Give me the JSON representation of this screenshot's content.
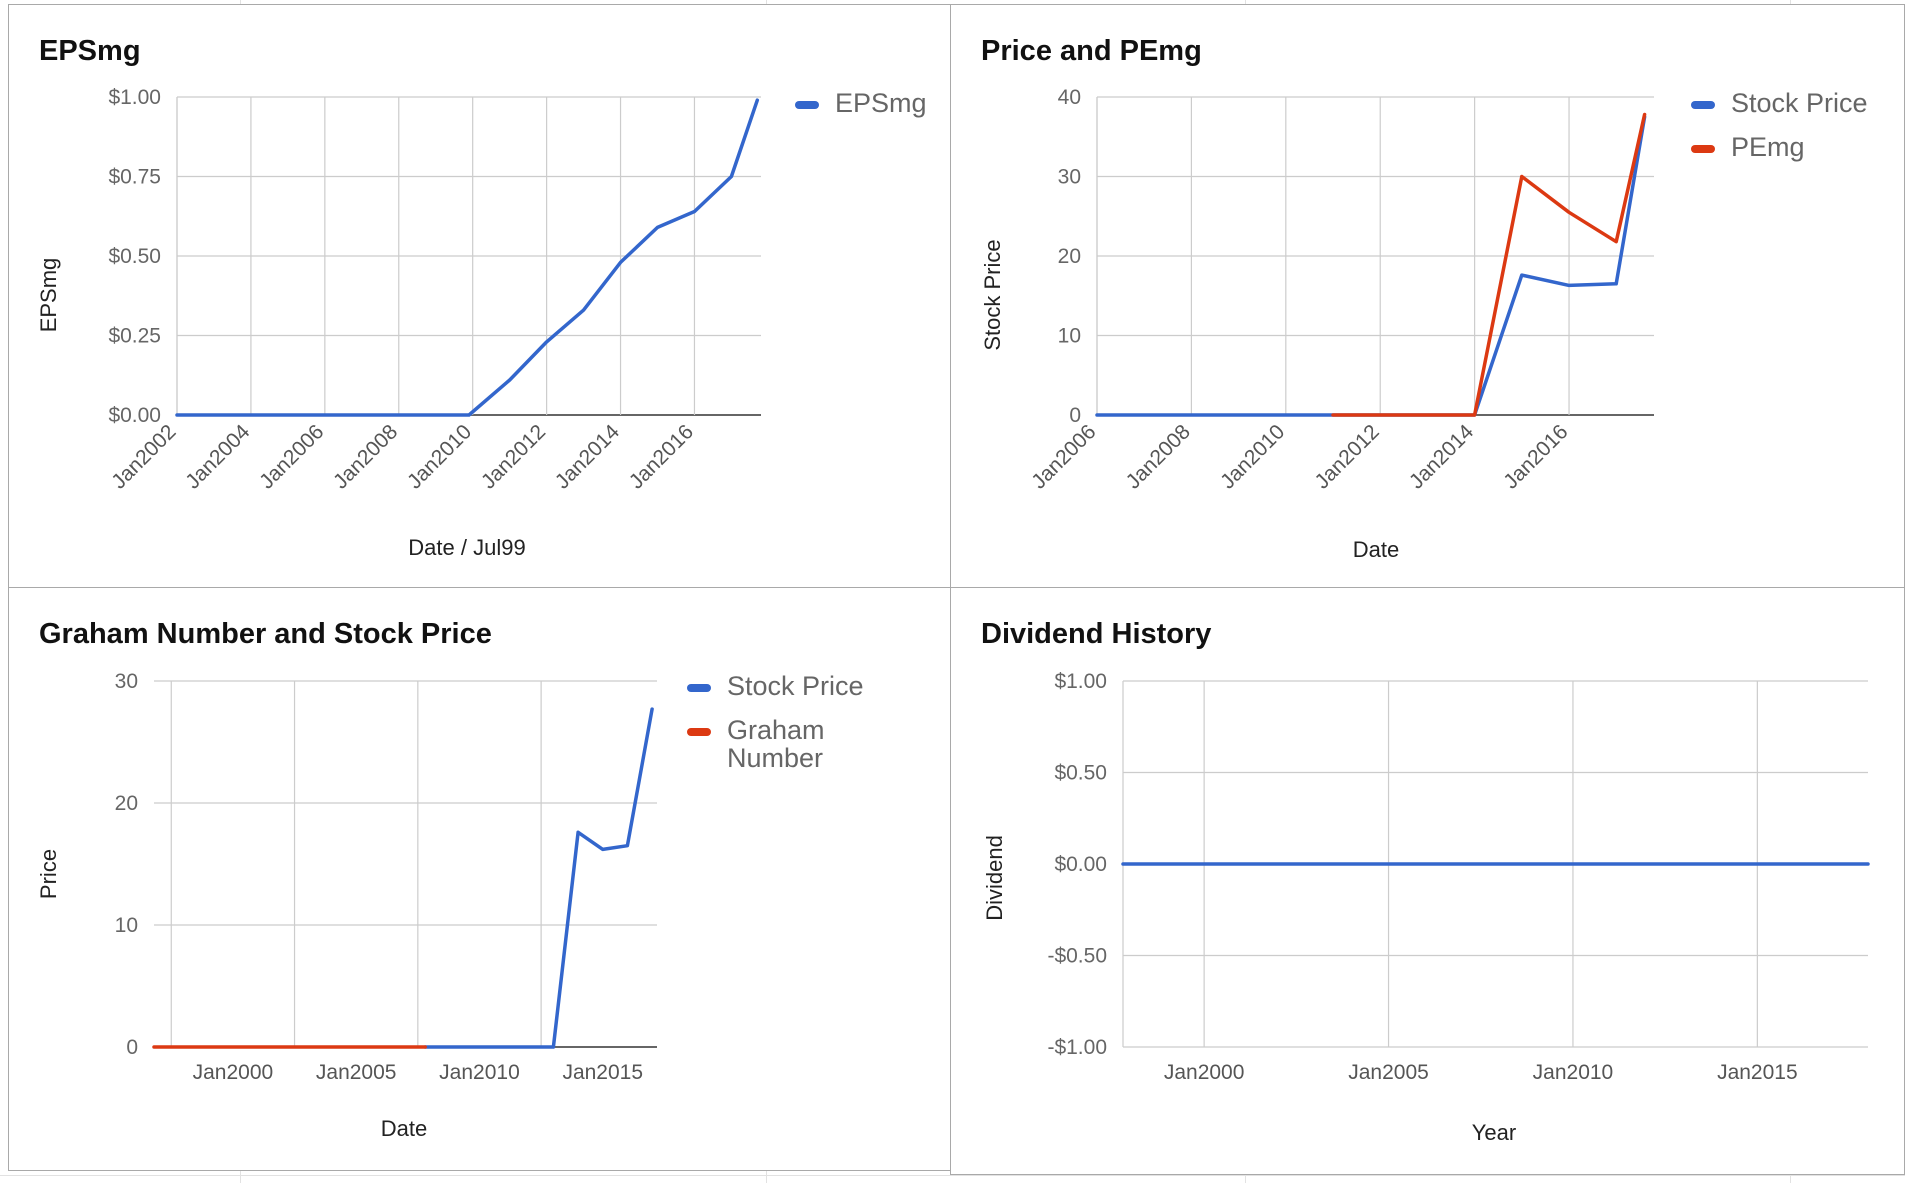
{
  "colors": {
    "blue": "#3366cc",
    "red": "#dc3912",
    "grid": "#cccccc",
    "axis": "#333333"
  },
  "chart_data": [
    {
      "type": "line",
      "title": "EPSmg",
      "xlabel": "Date / Jul99",
      "ylabel": "EPSmg",
      "ylim": [
        0,
        1
      ],
      "yticks": [
        "$0.00",
        "$0.25",
        "$0.50",
        "$0.75",
        "$1.00"
      ],
      "xticks": [
        "Jan2002",
        "Jan2004",
        "Jan2006",
        "Jan2008",
        "Jan2010",
        "Jan2012",
        "Jan2014",
        "Jan2016"
      ],
      "xrange": [
        2002,
        2017.8
      ],
      "legend_position": "right",
      "series": [
        {
          "name": "EPSmg",
          "color": "#3366cc",
          "x": [
            2002,
            2004,
            2006,
            2008,
            2009.9,
            2011,
            2012,
            2013,
            2014,
            2015,
            2016,
            2017,
            2017.7
          ],
          "y": [
            0,
            0,
            0,
            0,
            0,
            0.11,
            0.23,
            0.33,
            0.48,
            0.59,
            0.64,
            0.75,
            0.99
          ]
        }
      ]
    },
    {
      "type": "line",
      "title": "Price and PEmg",
      "xlabel": "Date",
      "ylabel": "Stock Price",
      "ylim": [
        0,
        40
      ],
      "yticks": [
        "0",
        "10",
        "20",
        "30",
        "40"
      ],
      "xticks": [
        "Jan2006",
        "Jan2008",
        "Jan2010",
        "Jan2012",
        "Jan2014",
        "Jan2016"
      ],
      "xrange": [
        2006,
        2017.8
      ],
      "legend_position": "right",
      "series": [
        {
          "name": "Stock Price",
          "color": "#3366cc",
          "x": [
            2006,
            2008,
            2010,
            2012,
            2014,
            2015,
            2016,
            2017,
            2017.6
          ],
          "y": [
            0,
            0,
            0,
            0,
            0,
            17.6,
            16.3,
            16.5,
            37.5
          ]
        },
        {
          "name": "PEmg",
          "color": "#dc3912",
          "x": [
            2011,
            2012,
            2013,
            2014,
            2015,
            2016,
            2017,
            2017.6
          ],
          "y": [
            0,
            0,
            0,
            0,
            30,
            25.5,
            21.8,
            37.8
          ]
        }
      ]
    },
    {
      "type": "line",
      "title": "Graham Number and Stock Price",
      "xlabel": "Date",
      "ylabel": "Price",
      "ylim": [
        0,
        30
      ],
      "yticks": [
        "0",
        "10",
        "20",
        "30"
      ],
      "xticks": [
        "Jan2000",
        "Jan2005",
        "Jan2010",
        "Jan2015"
      ],
      "xtick_values": [
        2000,
        2005,
        2010,
        2015
      ],
      "xrange": [
        1996.8,
        2017.2
      ],
      "legend_position": "right",
      "series": [
        {
          "name": "Stock Price",
          "color": "#3366cc",
          "x": [
            2007.8,
            2010,
            2012,
            2013,
            2014,
            2015,
            2016,
            2017
          ],
          "y": [
            0,
            0,
            0,
            0,
            17.6,
            16.2,
            16.5,
            27.7
          ]
        },
        {
          "name": "Graham Number",
          "color": "#dc3912",
          "x": [
            1996.8,
            2000,
            2004,
            2007.8
          ],
          "y": [
            0,
            0,
            0,
            0
          ]
        }
      ]
    },
    {
      "type": "line",
      "title": "Dividend History",
      "xlabel": "Year",
      "ylabel": "Dividend",
      "ylim": [
        -1,
        1
      ],
      "yticks": [
        "-$1.00",
        "-$0.50",
        "$0.00",
        "$0.50",
        "$1.00"
      ],
      "xticks": [
        "Jan2000",
        "Jan2005",
        "Jan2010",
        "Jan2015"
      ],
      "xtick_values": [
        2000,
        2005,
        2010,
        2015
      ],
      "xrange": [
        1997.8,
        2018
      ],
      "series": [
        {
          "name": "Dividend",
          "color": "#3366cc",
          "x": [
            1997.8,
            2000,
            2005,
            2010,
            2015,
            2018
          ],
          "y": [
            0,
            0,
            0,
            0,
            0,
            0
          ]
        }
      ]
    }
  ]
}
